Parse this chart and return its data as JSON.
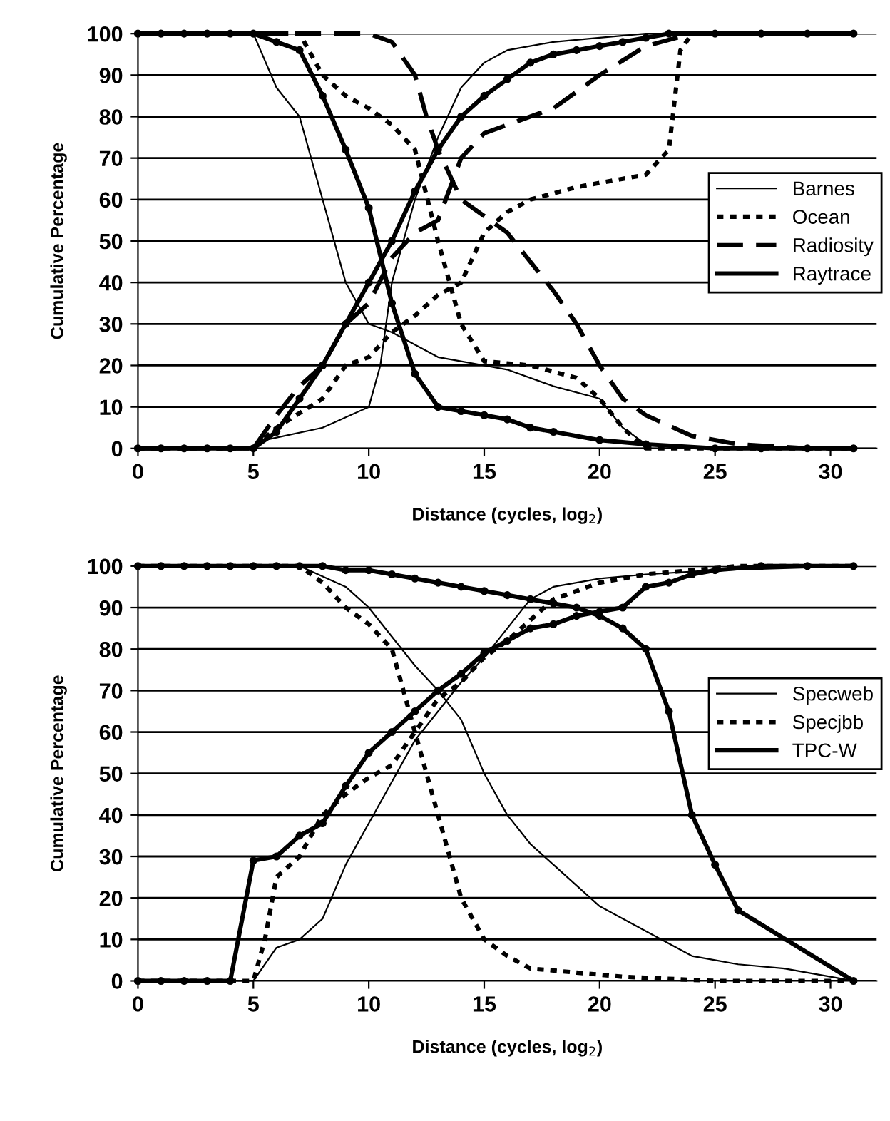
{
  "chart_data": [
    {
      "type": "line",
      "xlabel": "Distance (cycles, log$_{2}$)",
      "ylabel": "Cumulative Percentage",
      "xlim": [
        0,
        32
      ],
      "xticks": [
        0,
        5,
        10,
        15,
        20,
        25,
        30
      ],
      "ylim": [
        0,
        100
      ],
      "yticks": [
        0,
        10,
        20,
        30,
        40,
        50,
        60,
        70,
        80,
        90,
        100
      ],
      "grid": "y",
      "legend": "center right",
      "series": [
        {
          "name": "Barnes",
          "color": "#000000",
          "line_style": "solid",
          "marker": "none",
          "x": [
            0,
            5,
            5.5,
            8,
            10,
            10.5,
            11,
            12,
            13,
            14,
            15,
            16,
            18,
            20,
            22,
            31
          ],
          "values": [
            0,
            0,
            2,
            5,
            10,
            20,
            40,
            60,
            75,
            87,
            93,
            96,
            98,
            99,
            100,
            100
          ]
        },
        {
          "color": "#000000",
          "line_style": "solid",
          "marker": "none",
          "x": [
            0,
            5,
            6,
            7,
            8,
            9,
            10,
            11,
            13,
            15,
            16,
            18,
            20,
            21,
            22,
            25,
            31
          ],
          "values": [
            100,
            100,
            87,
            80,
            60,
            40,
            30,
            28,
            22,
            20,
            19,
            15,
            12,
            5,
            1,
            0,
            0
          ]
        },
        {
          "name": "Ocean",
          "color": "#000000",
          "line_style": "dotted",
          "marker": "none",
          "x": [
            0,
            5,
            6,
            8,
            9,
            10,
            11,
            12,
            13,
            14,
            15,
            16,
            17,
            19,
            21,
            22,
            23,
            23.5,
            24,
            31
          ],
          "values": [
            0,
            0,
            5,
            12,
            20,
            22,
            28,
            32,
            37,
            40,
            52,
            57,
            60,
            63,
            65,
            66,
            72,
            96,
            100,
            100
          ]
        },
        {
          "color": "#000000",
          "line_style": "dotted",
          "marker": "none",
          "x": [
            0,
            7,
            8,
            9,
            10,
            11,
            12,
            13,
            14,
            15,
            17,
            19,
            20,
            21,
            22,
            31
          ],
          "values": [
            100,
            100,
            90,
            85,
            82,
            78,
            72,
            50,
            30,
            21,
            20,
            17,
            12,
            5,
            0,
            0
          ]
        },
        {
          "name": "Radiosity",
          "color": "#000000",
          "line_style": "dashed",
          "marker": "none",
          "x": [
            0,
            5,
            6,
            7,
            8,
            9,
            10,
            11,
            12,
            13,
            14,
            15,
            16,
            18,
            20,
            22,
            24,
            31
          ],
          "values": [
            0,
            0,
            8,
            15,
            20,
            30,
            35,
            46,
            52,
            55,
            70,
            76,
            78,
            82,
            90,
            97,
            100,
            100
          ]
        },
        {
          "color": "#000000",
          "line_style": "dashed",
          "marker": "none",
          "x": [
            0,
            10,
            11,
            12,
            12.5,
            13,
            14,
            15,
            16,
            17,
            18,
            19,
            20,
            21,
            22,
            24,
            26,
            29,
            31
          ],
          "values": [
            100,
            100,
            98,
            90,
            80,
            72,
            60,
            56,
            52,
            45,
            38,
            30,
            20,
            12,
            8,
            3,
            1,
            0,
            0
          ]
        },
        {
          "name": "Raytrace",
          "color": "#000000",
          "line_style": "solid",
          "marker": "circle",
          "x": [
            0,
            1,
            2,
            3,
            4,
            5,
            6,
            7,
            8,
            9,
            10,
            11,
            12,
            13,
            14,
            15,
            16,
            17,
            18,
            19,
            20,
            21,
            22,
            23,
            25,
            27,
            29,
            31
          ],
          "values": [
            0,
            0,
            0,
            0,
            0,
            0,
            4,
            12,
            20,
            30,
            40,
            50,
            62,
            72,
            80,
            85,
            89,
            93,
            95,
            96,
            97,
            98,
            99,
            100,
            100,
            100,
            100,
            100
          ]
        },
        {
          "color": "#000000",
          "line_style": "solid",
          "marker": "circle",
          "x": [
            0,
            1,
            2,
            3,
            4,
            5,
            6,
            7,
            8,
            9,
            10,
            11,
            12,
            13,
            14,
            15,
            16,
            17,
            18,
            20,
            22,
            25,
            27,
            29,
            31
          ],
          "values": [
            100,
            100,
            100,
            100,
            100,
            100,
            98,
            96,
            85,
            72,
            58,
            35,
            18,
            10,
            9,
            8,
            7,
            5,
            4,
            2,
            1,
            0,
            0,
            0,
            0
          ]
        }
      ]
    },
    {
      "type": "line",
      "xlabel": "Distance (cycles, log$_{2}$)",
      "ylabel": "Cumulative Percentage",
      "xlim": [
        0,
        32
      ],
      "xticks": [
        0,
        5,
        10,
        15,
        20,
        25,
        30
      ],
      "ylim": [
        0,
        100
      ],
      "yticks": [
        0,
        10,
        20,
        30,
        40,
        50,
        60,
        70,
        80,
        90,
        100
      ],
      "grid": "y",
      "legend": "right",
      "series": [
        {
          "name": "Specweb",
          "color": "#000000",
          "line_style": "solid",
          "marker": "none",
          "x": [
            0,
            5,
            6,
            7,
            8,
            9,
            10,
            11,
            12,
            13,
            14,
            15,
            16,
            17,
            18,
            20,
            22,
            25,
            31
          ],
          "values": [
            0,
            0,
            8,
            10,
            15,
            28,
            38,
            48,
            58,
            65,
            72,
            78,
            85,
            92,
            95,
            97,
            98,
            99,
            100
          ]
        },
        {
          "color": "#000000",
          "line_style": "solid",
          "marker": "none",
          "x": [
            0,
            7,
            9,
            10,
            11,
            12,
            13,
            14,
            15,
            16,
            17,
            18,
            20,
            22,
            24,
            26,
            28,
            31
          ],
          "values": [
            100,
            100,
            95,
            90,
            83,
            76,
            70,
            63,
            50,
            40,
            33,
            28,
            18,
            12,
            6,
            4,
            3,
            0
          ]
        },
        {
          "name": "Specjbb",
          "color": "#000000",
          "line_style": "dotted",
          "marker": "none",
          "x": [
            0,
            5,
            5.5,
            6,
            7,
            8,
            9,
            10,
            11,
            12,
            13,
            14,
            15,
            16,
            17,
            18,
            19,
            20,
            22,
            24,
            26,
            31
          ],
          "values": [
            0,
            0,
            10,
            25,
            30,
            40,
            45,
            49,
            52,
            60,
            68,
            72,
            78,
            82,
            87,
            92,
            94,
            96,
            98,
            99,
            100,
            100
          ]
        },
        {
          "color": "#000000",
          "line_style": "dotted",
          "marker": "none",
          "x": [
            0,
            7,
            8,
            9,
            10,
            11,
            12,
            13,
            14,
            15,
            16,
            17,
            19,
            21,
            25,
            31
          ],
          "values": [
            100,
            100,
            96,
            90,
            86,
            80,
            60,
            40,
            20,
            10,
            6,
            3,
            2,
            1,
            0,
            0
          ]
        },
        {
          "name": "TPC-W",
          "color": "#000000",
          "line_style": "solid",
          "marker": "circle",
          "x": [
            0,
            1,
            2,
            3,
            4,
            5,
            6,
            7,
            8,
            9,
            10,
            11,
            12,
            13,
            14,
            15,
            16,
            17,
            18,
            19,
            20,
            21,
            22,
            23,
            24,
            25,
            27,
            29,
            31
          ],
          "values": [
            0,
            0,
            0,
            0,
            0,
            29,
            30,
            35,
            38,
            47,
            55,
            60,
            65,
            70,
            74,
            79,
            82,
            85,
            86,
            88,
            89,
            90,
            95,
            96,
            98,
            99,
            100,
            100,
            100
          ]
        },
        {
          "color": "#000000",
          "line_style": "solid",
          "marker": "circle",
          "x": [
            0,
            1,
            2,
            3,
            4,
            5,
            6,
            7,
            8,
            9,
            10,
            11,
            12,
            13,
            14,
            15,
            16,
            17,
            18,
            19,
            20,
            21,
            22,
            23,
            24,
            25,
            26,
            31
          ],
          "values": [
            100,
            100,
            100,
            100,
            100,
            100,
            100,
            100,
            100,
            99,
            99,
            98,
            97,
            96,
            95,
            94,
            93,
            92,
            91,
            90,
            88,
            85,
            80,
            65,
            40,
            28,
            17,
            0
          ]
        }
      ]
    }
  ]
}
